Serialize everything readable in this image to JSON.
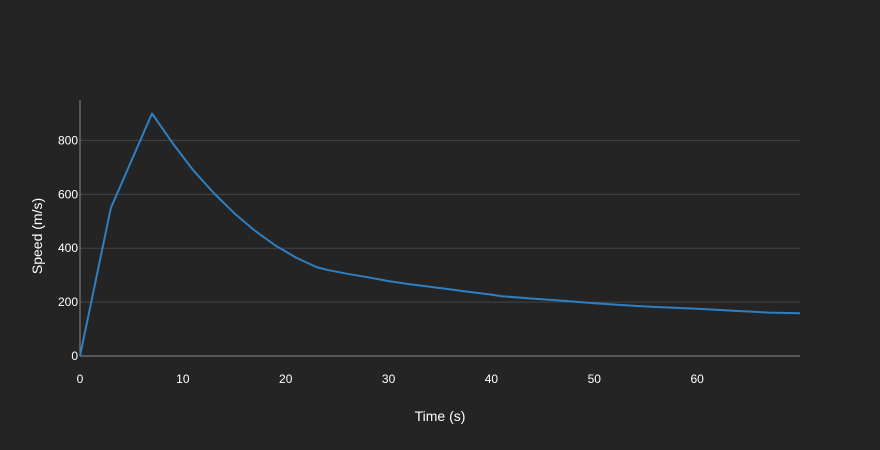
{
  "chart_data": {
    "type": "line",
    "title": "",
    "xlabel": "Time (s)",
    "ylabel": "Speed (m/s)",
    "xlim": [
      0,
      70
    ],
    "ylim": [
      0,
      950
    ],
    "xticks": [
      0,
      10,
      20,
      30,
      40,
      50,
      60
    ],
    "yticks": [
      0,
      200,
      400,
      600,
      800
    ],
    "grid": true,
    "colors": {
      "background": "#242424",
      "line": "#2f7fc1",
      "grid": "#444444",
      "axis": "#8a8a8a",
      "text": "#ffffff"
    },
    "series": [
      {
        "x": [
          0,
          3,
          7,
          9,
          11,
          13,
          15,
          17,
          19,
          21,
          23,
          24,
          26,
          28,
          30,
          32,
          34,
          36,
          38,
          40,
          41,
          44,
          47,
          50,
          53,
          56,
          60,
          64,
          67,
          70
        ],
        "y": [
          0,
          550,
          900,
          790,
          690,
          605,
          530,
          465,
          410,
          365,
          330,
          320,
          305,
          292,
          278,
          267,
          257,
          247,
          237,
          228,
          222,
          213,
          205,
          196,
          188,
          182,
          175,
          167,
          161,
          159
        ]
      }
    ]
  }
}
